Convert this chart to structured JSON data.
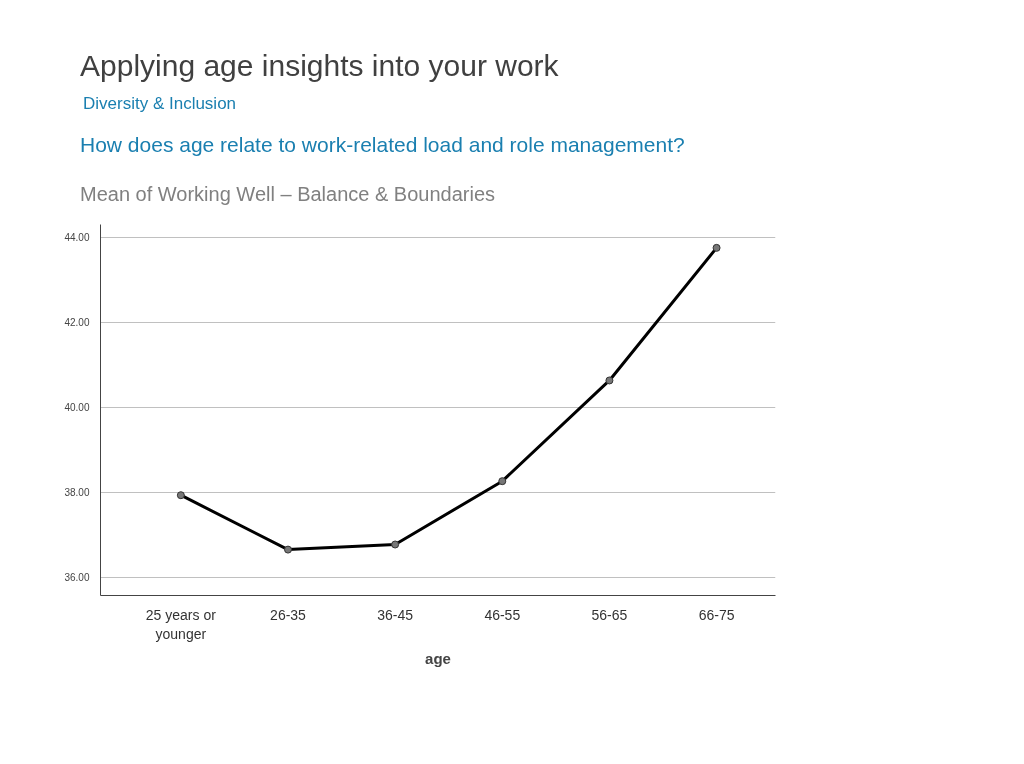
{
  "chart_data": {
    "type": "line",
    "title": "Applying age insights into your work",
    "subtitle": "Diversity & Inclusion",
    "annotations": [
      "How does age relate to work-related load and role management?",
      "Mean of Working Well – Balance & Boundaries"
    ],
    "xlabel": "age",
    "categories": [
      "25 years or\nyounger",
      "26-35",
      "36-45",
      "46-55",
      "56-65",
      "66-75"
    ],
    "series": [
      {
        "color": "#000000",
        "values": [
          37.93,
          36.65,
          36.77,
          38.26,
          40.63,
          43.75
        ]
      }
    ],
    "ylim": [
      35.57,
      44.3
    ],
    "yticks": [
      {
        "value": 36,
        "label": "36.00"
      },
      {
        "value": 38,
        "label": "38.00"
      },
      {
        "value": 40,
        "label": "40.00"
      },
      {
        "value": 42,
        "label": "42.00"
      },
      {
        "value": 44,
        "label": "44.00"
      }
    ],
    "grid": "y",
    "marker": "circle",
    "line_style": "solid"
  }
}
